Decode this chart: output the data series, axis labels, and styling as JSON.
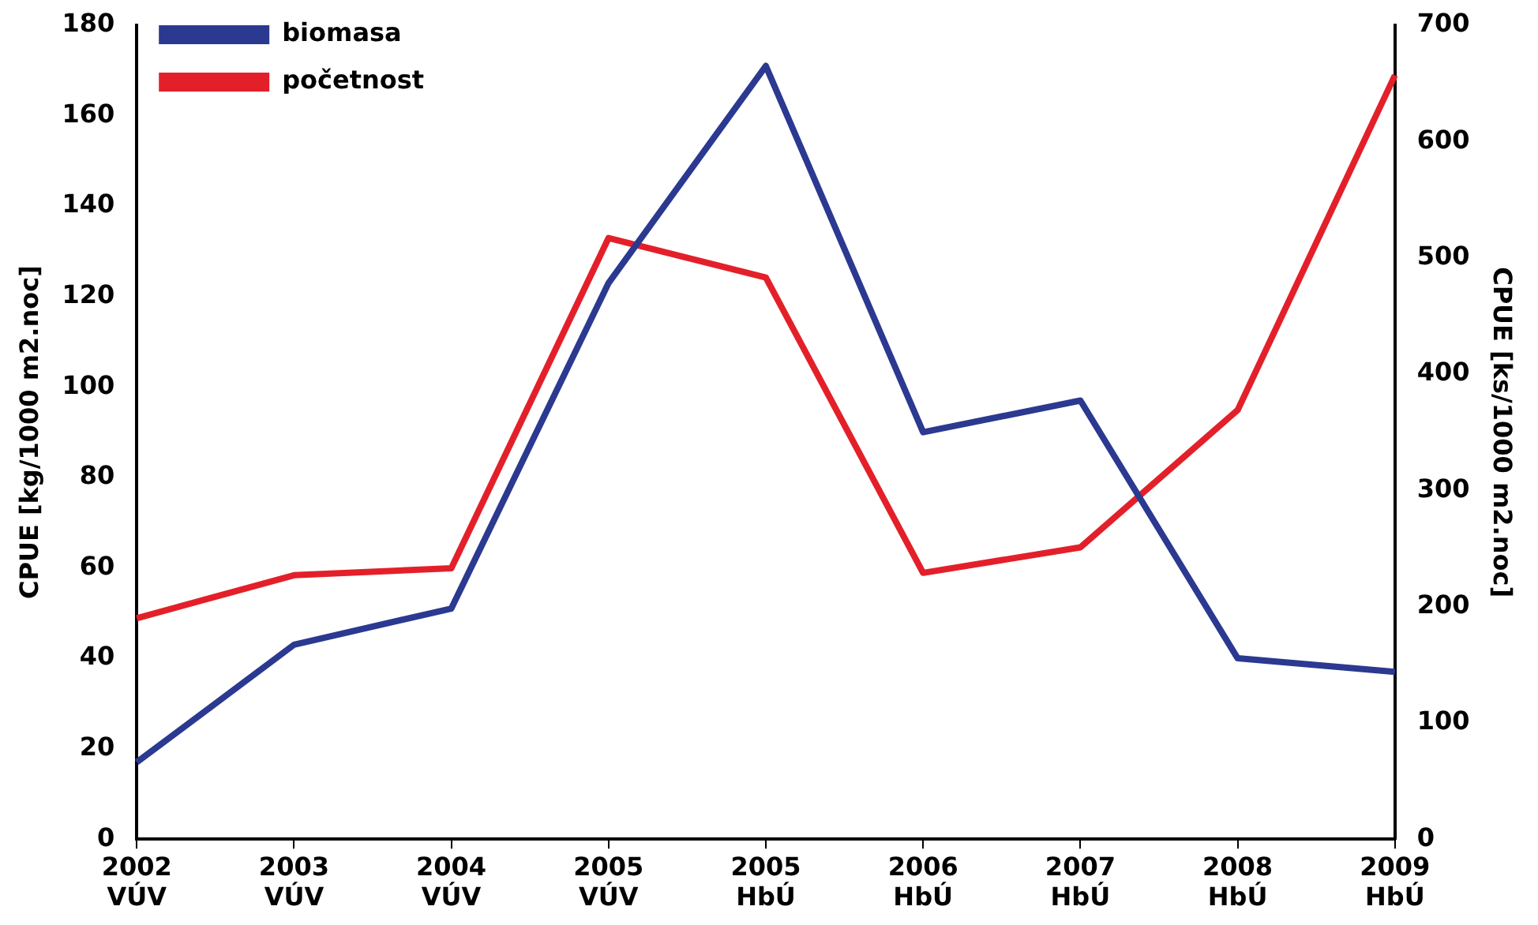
{
  "chart_data": {
    "type": "line",
    "ylabel": "CPUE [kg/1000 m2.noc]",
    "y2label": "CPUE [ks/1000 m2.noc]",
    "categories": [
      "2002\nVÚV",
      "2003\nVÚV",
      "2004\nVÚV",
      "2005\nVÚV",
      "2005\nHbÚ",
      "2006\nHbÚ",
      "2007\nHbÚ",
      "2008\nHbÚ",
      "2009\nHbÚ"
    ],
    "series": [
      {
        "name": "biomasa",
        "color": "#2b3990",
        "values": [
          17,
          43,
          51,
          123,
          171,
          90,
          97,
          40,
          37
        ]
      },
      {
        "name": "početnost",
        "color": "#e3202a",
        "axis": "y2",
        "values": [
          190,
          227,
          233,
          517,
          483,
          229,
          251,
          369,
          657
        ]
      }
    ],
    "ylim": [
      0,
      180
    ],
    "yticks": [
      0,
      20,
      40,
      60,
      80,
      100,
      120,
      140,
      160,
      180
    ],
    "y2lim": [
      0,
      700
    ],
    "y2ticks": [
      0,
      100,
      200,
      300,
      400,
      500,
      600,
      700
    ],
    "grid": false,
    "legend": "top left",
    "marker": "none",
    "line_style": "solid"
  }
}
